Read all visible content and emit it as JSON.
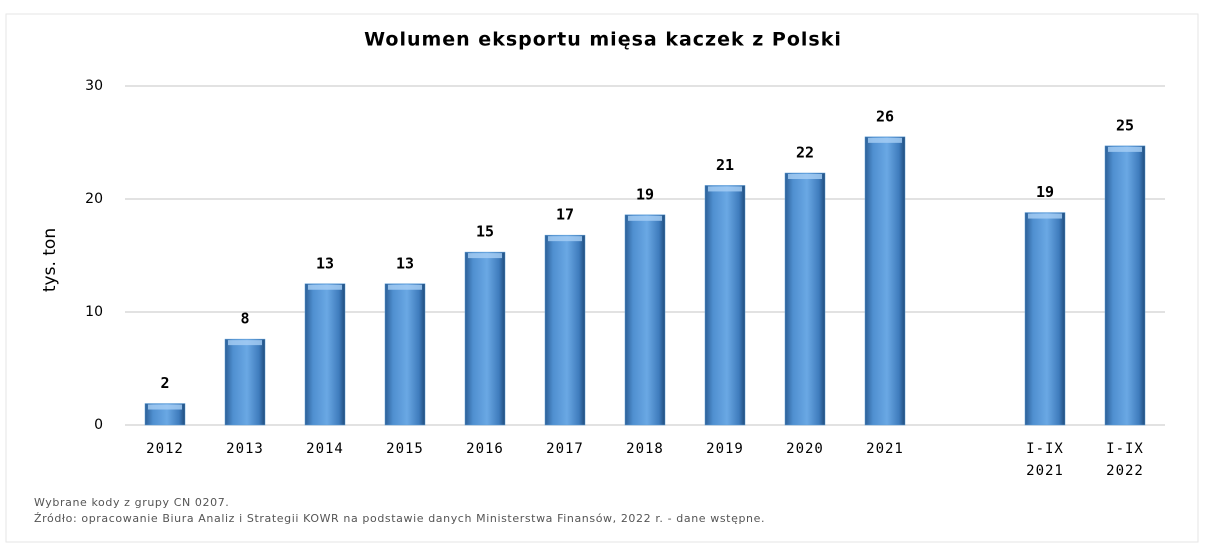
{
  "chart_data": {
    "type": "bar",
    "title": "Wolumen eksportu mięsa kaczek z Polski",
    "y_label": "tys. ton",
    "categories": [
      "2012",
      "2013",
      "2014",
      "2015",
      "2016",
      "2017",
      "2018",
      "2019",
      "2020",
      "2021",
      null,
      "I-IX 2021",
      "I-IX 2022"
    ],
    "values": [
      1.9,
      7.6,
      12.5,
      12.5,
      15.3,
      16.8,
      18.6,
      21.2,
      22.3,
      25.5,
      null,
      18.8,
      24.7
    ],
    "value_labels": [
      "2",
      "8",
      "13",
      "13",
      "15",
      "17",
      "19",
      "21",
      "22",
      "26",
      null,
      "19",
      "25"
    ],
    "color": "#5b9bd5",
    "ylim": [
      0,
      30
    ],
    "yticks": [
      0,
      10,
      20,
      30
    ],
    "grid": true,
    "notes": [
      "Wybrane kody z grupy CN 0207.",
      "Źródło: opracowanie Biura Analiz i Strategii KOWR na podstawie danych Ministerstwa Finansów, 2022 r. - dane wstępne."
    ]
  }
}
